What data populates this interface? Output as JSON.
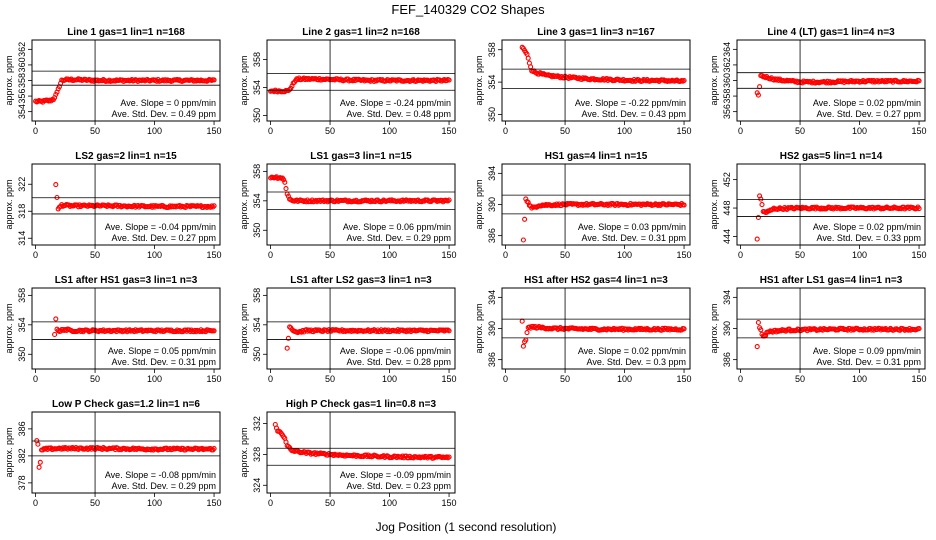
{
  "page": {
    "title": "FEF_140329  CO2 Shapes",
    "xlabel": "Jog Position (1 second resolution)"
  },
  "chart_data": [
    {
      "type": "scatter",
      "title": "Line 1 gas=1 lin=1 n=168",
      "ylabel": "approx. ppm",
      "xlim": [
        -3,
        155
      ],
      "xticks": [
        0,
        50,
        100,
        150
      ],
      "ylim": [
        352.8,
        363.2
      ],
      "yticks": [
        354,
        356,
        358,
        360,
        362
      ],
      "hlines": [
        357.4,
        359.2
      ],
      "vline": 50,
      "slope_text": "Ave. Slope = 0  ppm/min",
      "std_text": "Ave. Std. Dev. = 0.49  ppm",
      "points": [
        [
          0,
          355.3
        ],
        [
          3,
          355.3
        ],
        [
          6,
          355.3
        ],
        [
          9,
          355.4
        ],
        [
          12,
          355.4
        ],
        [
          15,
          355.6
        ],
        [
          18,
          356.4
        ],
        [
          20,
          357.3
        ],
        [
          22,
          358.0
        ],
        [
          25,
          358.1
        ],
        [
          35,
          358.1
        ],
        [
          50,
          358.0
        ],
        [
          70,
          358.0
        ],
        [
          90,
          358.0
        ],
        [
          110,
          358.0
        ],
        [
          130,
          358.0
        ],
        [
          150,
          358.0
        ]
      ],
      "step": 1
    },
    {
      "type": "scatter",
      "title": "Line 2 gas=1 lin=2 n=168",
      "ylabel": "approx. ppm",
      "xlim": [
        -3,
        155
      ],
      "xticks": [
        0,
        50,
        100,
        150
      ],
      "ylim": [
        349.2,
        360.8
      ],
      "yticks": [
        350,
        354,
        358
      ],
      "hlines": [
        353.6,
        356.0
      ],
      "vline": 50,
      "slope_text": "Ave. Slope = -0.24  ppm/min",
      "std_text": "Ave. Std. Dev. = 0.48  ppm",
      "points": [
        [
          0,
          353.5
        ],
        [
          15,
          353.5
        ],
        [
          18,
          354.2
        ],
        [
          21,
          355.1
        ],
        [
          24,
          355.2
        ],
        [
          40,
          355.2
        ],
        [
          60,
          355.1
        ],
        [
          80,
          355.0
        ],
        [
          100,
          355.0
        ],
        [
          120,
          355.0
        ],
        [
          150,
          355.0
        ]
      ],
      "step": 1
    },
    {
      "type": "scatter",
      "title": "Line 3 gas=1 lin=3 n=167",
      "ylabel": "approx. ppm",
      "xlim": [
        -3,
        155
      ],
      "xticks": [
        0,
        50,
        100,
        150
      ],
      "ylim": [
        349.2,
        359.2
      ],
      "yticks": [
        350,
        354,
        358
      ],
      "hlines": [
        353.2,
        355.6
      ],
      "vline": 50,
      "slope_text": "Ave. Slope = -0.22  ppm/min",
      "std_text": "Ave. Std. Dev. = 0.43  ppm",
      "points": [
        [
          14,
          358.3
        ],
        [
          16,
          357.9
        ],
        [
          18,
          357.4
        ],
        [
          20,
          356.4
        ],
        [
          22,
          355.5
        ],
        [
          25,
          355.2
        ],
        [
          35,
          354.8
        ],
        [
          50,
          354.6
        ],
        [
          70,
          354.4
        ],
        [
          90,
          354.3
        ],
        [
          110,
          354.2
        ],
        [
          130,
          354.2
        ],
        [
          150,
          354.1
        ]
      ],
      "step": 1
    },
    {
      "type": "scatter",
      "title": "Line 4 (LT) gas=1 lin=4 n=3",
      "ylabel": "approx. ppm",
      "xlim": [
        -3,
        155
      ],
      "xticks": [
        0,
        50,
        100,
        150
      ],
      "ylim": [
        354.8,
        365.2
      ],
      "yticks": [
        356,
        358,
        360,
        362,
        364
      ],
      "hlines": [
        359.0,
        361.0
      ],
      "vline": 50,
      "slope_text": "Ave. Slope = 0.02  ppm/min",
      "std_text": "Ave. Std. Dev. = 0.27  ppm",
      "points": [
        [
          14,
          358.3
        ],
        [
          15,
          358.0
        ],
        [
          17,
          360.6
        ],
        [
          20,
          360.5
        ],
        [
          30,
          360.1
        ],
        [
          50,
          359.8
        ],
        [
          70,
          359.8
        ],
        [
          100,
          359.9
        ],
        [
          130,
          359.9
        ],
        [
          150,
          359.9
        ]
      ],
      "step": 1
    },
    {
      "type": "scatter",
      "title": "LS2 gas=2 lin=1 n=15",
      "ylabel": "approx. ppm",
      "xlim": [
        -3,
        155
      ],
      "xticks": [
        0,
        50,
        100,
        150
      ],
      "ylim": [
        313.0,
        325.0
      ],
      "yticks": [
        314,
        318,
        322
      ],
      "hlines": [
        317.6,
        320.0
      ],
      "vline": 50,
      "slope_text": "Ave. Slope = -0.04  ppm/min",
      "std_text": "Ave. Std. Dev. = 0.27  ppm",
      "points": [
        [
          17,
          322.0
        ],
        [
          19,
          318.3
        ],
        [
          22,
          318.9
        ],
        [
          30,
          318.8
        ],
        [
          60,
          318.8
        ],
        [
          100,
          318.7
        ],
        [
          150,
          318.7
        ]
      ],
      "step": 1
    },
    {
      "type": "scatter",
      "title": "LS1 gas=3 lin=1 n=15",
      "ylabel": "approx. ppm",
      "xlim": [
        -3,
        155
      ],
      "xticks": [
        0,
        50,
        100,
        150
      ],
      "ylim": [
        348.0,
        359.0
      ],
      "yticks": [
        350,
        354,
        358
      ],
      "hlines": [
        352.8,
        355.2
      ],
      "vline": 50,
      "slope_text": "Ave. Slope = 0.06  ppm/min",
      "std_text": "Ave. Std. Dev. = 0.29  ppm",
      "points": [
        [
          0,
          357.2
        ],
        [
          5,
          357.2
        ],
        [
          10,
          357.1
        ],
        [
          12,
          356.5
        ],
        [
          14,
          355.0
        ],
        [
          16,
          354.2
        ],
        [
          20,
          354.0
        ],
        [
          50,
          354.0
        ],
        [
          100,
          354.0
        ],
        [
          150,
          354.0
        ]
      ],
      "step": 1
    },
    {
      "type": "scatter",
      "title": "HS1 gas=4 lin=1 n=15",
      "ylabel": "approx. ppm",
      "xlim": [
        -3,
        155
      ],
      "xticks": [
        0,
        50,
        100,
        150
      ],
      "ylim": [
        384.8,
        395.2
      ],
      "yticks": [
        386,
        390,
        394
      ],
      "hlines": [
        388.8,
        391.2
      ],
      "vline": 50,
      "slope_text": "Ave. Slope = 0.03  ppm/min",
      "std_text": "Ave. Std. Dev. = 0.31  ppm",
      "points": [
        [
          15,
          385.5
        ],
        [
          17,
          390.8
        ],
        [
          19,
          390.2
        ],
        [
          22,
          389.5
        ],
        [
          28,
          389.9
        ],
        [
          50,
          390.0
        ],
        [
          100,
          390.0
        ],
        [
          150,
          390.0
        ]
      ],
      "step": 1
    },
    {
      "type": "scatter",
      "title": "HS2 gas=5 lin=1 n=14",
      "ylabel": "approx. ppm",
      "xlim": [
        -3,
        155
      ],
      "xticks": [
        0,
        50,
        100,
        150
      ],
      "ylim": [
        442.8,
        454.2
      ],
      "yticks": [
        444,
        448,
        452
      ],
      "hlines": [
        446.8,
        449.2
      ],
      "vline": 50,
      "slope_text": "Ave. Slope = 0.02  ppm/min",
      "std_text": "Ave. Std. Dev. = 0.33  ppm",
      "points": [
        [
          14,
          443.5
        ],
        [
          16,
          449.8
        ],
        [
          17,
          449.3
        ],
        [
          19,
          447.5
        ],
        [
          22,
          447.4
        ],
        [
          28,
          447.9
        ],
        [
          50,
          448.0
        ],
        [
          100,
          448.0
        ],
        [
          150,
          448.0
        ]
      ],
      "step": 1
    },
    {
      "type": "scatter",
      "title": "LS1 after HS1 gas=3 lin=1 n=3",
      "ylabel": "approx. ppm",
      "xlim": [
        -3,
        155
      ],
      "xticks": [
        0,
        50,
        100,
        150
      ],
      "ylim": [
        348.0,
        359.0
      ],
      "yticks": [
        350,
        354,
        358
      ],
      "hlines": [
        352.0,
        354.4
      ],
      "vline": 50,
      "slope_text": "Ave. Slope = 0.05  ppm/min",
      "std_text": "Ave. Std. Dev. = 0.31  ppm",
      "points": [
        [
          16,
          352.8
        ],
        [
          17,
          354.8
        ],
        [
          18,
          353.5
        ],
        [
          20,
          353.0
        ],
        [
          23,
          353.4
        ],
        [
          30,
          353.2
        ],
        [
          60,
          353.2
        ],
        [
          100,
          353.2
        ],
        [
          150,
          353.2
        ]
      ],
      "step": 1
    },
    {
      "type": "scatter",
      "title": "LS1 after LS2 gas=3 lin=1 n=3",
      "ylabel": "approx. ppm",
      "xlim": [
        -3,
        155
      ],
      "xticks": [
        0,
        50,
        100,
        150
      ],
      "ylim": [
        348.0,
        359.0
      ],
      "yticks": [
        350,
        354,
        358
      ],
      "hlines": [
        352.0,
        354.4
      ],
      "vline": 50,
      "slope_text": "Ave. Slope = -0.06  ppm/min",
      "std_text": "Ave. Std. Dev. = 0.28  ppm",
      "points": [
        [
          14,
          350.8
        ],
        [
          16,
          353.8
        ],
        [
          18,
          353.4
        ],
        [
          22,
          353.0
        ],
        [
          30,
          353.2
        ],
        [
          60,
          353.2
        ],
        [
          100,
          353.2
        ],
        [
          150,
          353.2
        ]
      ],
      "step": 1
    },
    {
      "type": "scatter",
      "title": "HS1 after HS2 gas=4 lin=1 n=3",
      "ylabel": "approx. ppm",
      "xlim": [
        -3,
        155
      ],
      "xticks": [
        0,
        50,
        100,
        150
      ],
      "ylim": [
        384.8,
        395.2
      ],
      "yticks": [
        386,
        390,
        394
      ],
      "hlines": [
        388.8,
        391.2
      ],
      "vline": 50,
      "slope_text": "Ave. Slope = 0.02  ppm/min",
      "std_text": "Ave. Std. Dev. = 0.3  ppm",
      "points": [
        [
          14,
          391.0
        ],
        [
          15,
          387.8
        ],
        [
          16,
          388.2
        ],
        [
          17,
          388.6
        ],
        [
          19,
          390.1
        ],
        [
          22,
          390.2
        ],
        [
          40,
          390.0
        ],
        [
          80,
          389.9
        ],
        [
          120,
          389.9
        ],
        [
          150,
          389.9
        ]
      ],
      "step": 1
    },
    {
      "type": "scatter",
      "title": "HS1 after LS1 gas=4 lin=1 n=3",
      "ylabel": "approx. ppm",
      "xlim": [
        -3,
        155
      ],
      "xticks": [
        0,
        50,
        100,
        150
      ],
      "ylim": [
        384.8,
        395.2
      ],
      "yticks": [
        386,
        390,
        394
      ],
      "hlines": [
        388.8,
        391.2
      ],
      "vline": 50,
      "slope_text": "Ave. Slope = 0.09  ppm/min",
      "std_text": "Ave. Std. Dev. = 0.31  ppm",
      "points": [
        [
          14,
          387.7
        ],
        [
          15,
          390.8
        ],
        [
          16,
          390.2
        ],
        [
          18,
          389.3
        ],
        [
          20,
          389.0
        ],
        [
          23,
          389.6
        ],
        [
          40,
          389.8
        ],
        [
          80,
          389.9
        ],
        [
          120,
          389.9
        ],
        [
          150,
          389.9
        ]
      ],
      "step": 1
    },
    {
      "type": "scatter",
      "title": "Low P Check gas=1.2 lin=1 n=6",
      "ylabel": "approx. ppm",
      "xlim": [
        -3,
        155
      ],
      "xticks": [
        0,
        50,
        100,
        150
      ],
      "ylim": [
        376.5,
        388.5
      ],
      "yticks": [
        378,
        382,
        386
      ],
      "hlines": [
        382.0,
        384.2
      ],
      "vline": 50,
      "slope_text": "Ave. Slope = -0.08  ppm/min",
      "std_text": "Ave. Std. Dev. = 0.29  ppm",
      "points": [
        [
          1,
          384.2
        ],
        [
          2,
          383.6
        ],
        [
          3,
          380.4
        ],
        [
          4,
          381.0
        ],
        [
          5,
          382.8
        ],
        [
          8,
          383.0
        ],
        [
          20,
          383.1
        ],
        [
          50,
          383.1
        ],
        [
          100,
          383.0
        ],
        [
          150,
          383.0
        ]
      ],
      "step": 1
    },
    {
      "type": "scatter",
      "title": "High P Check gas=1 lin=0.8 n=3",
      "ylabel": "approx. ppm",
      "xlim": [
        -3,
        155
      ],
      "xticks": [
        0,
        50,
        100,
        150
      ],
      "ylim": [
        323.0,
        333.5
      ],
      "yticks": [
        324,
        328,
        332
      ],
      "hlines": [
        326.6,
        328.8
      ],
      "vline": 50,
      "slope_text": "Ave. Slope = -0.09  ppm/min",
      "std_text": "Ave. Std. Dev. = 0.23  ppm",
      "points": [
        [
          4,
          331.8
        ],
        [
          6,
          331.0
        ],
        [
          8,
          331.0
        ],
        [
          10,
          330.6
        ],
        [
          12,
          330.0
        ],
        [
          14,
          329.1
        ],
        [
          18,
          328.5
        ],
        [
          30,
          328.2
        ],
        [
          60,
          327.9
        ],
        [
          100,
          327.7
        ],
        [
          150,
          327.6
        ]
      ],
      "step": 1
    }
  ]
}
